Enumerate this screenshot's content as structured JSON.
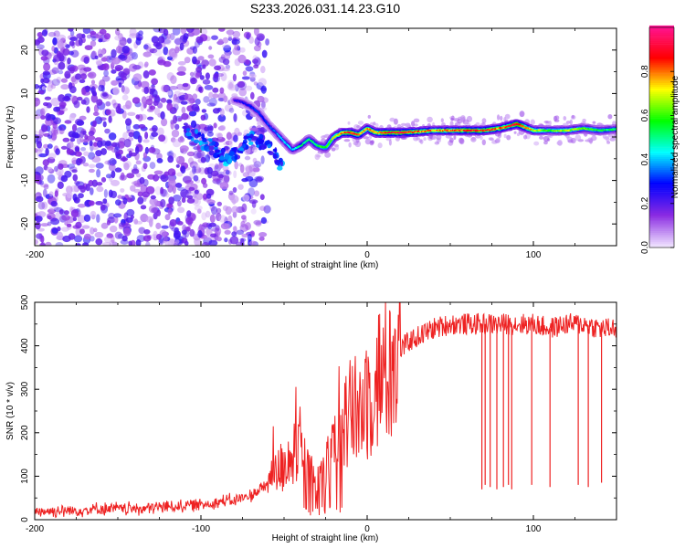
{
  "title": "S233.2026.031.14.23.G10",
  "chart_data": [
    {
      "type": "heatmap",
      "title": "S233.2026.031.14.23.G10",
      "xlabel": "Height of straight line (km)",
      "ylabel": "Frequency (Hz)",
      "xlim": [
        -200,
        150
      ],
      "ylim": [
        -25,
        25
      ],
      "xticks": [
        -200,
        -100,
        0,
        100
      ],
      "yticks": [
        -20,
        -10,
        0,
        10,
        20
      ],
      "colorbar": {
        "label": "Normalized spectral amplitude",
        "range": [
          0,
          1
        ],
        "ticks": [
          0.0,
          0.2,
          0.4,
          0.6,
          0.8
        ],
        "colors": [
          "#f0e4ff",
          "#8a2be2",
          "#0000ff",
          "#00ffff",
          "#00ff00",
          "#ffff00",
          "#ff0000",
          "#ff1493"
        ]
      },
      "dominant_line": {
        "x": [
          -80,
          -75,
          -70,
          -65,
          -60,
          -55,
          -50,
          -45,
          -40,
          -35,
          -30,
          -25,
          -20,
          -15,
          -10,
          -5,
          0,
          5,
          10,
          20,
          30,
          40,
          50,
          60,
          70,
          80,
          85,
          90,
          100,
          110,
          120,
          130,
          140,
          150
        ],
        "freq": [
          8.5,
          8,
          7,
          5.5,
          3,
          1,
          -1,
          -3,
          -2,
          -0.5,
          -2,
          -2.5,
          0,
          1,
          1,
          0.5,
          2,
          1,
          1,
          1,
          1.2,
          1.5,
          1.5,
          1.5,
          1.5,
          2,
          2.5,
          3,
          1.5,
          1.5,
          1.5,
          2,
          1.5,
          1.8
        ],
        "amplitude": [
          0.25,
          0.25,
          0.3,
          0.3,
          0.3,
          0.35,
          0.4,
          0.4,
          0.5,
          0.5,
          0.55,
          0.6,
          0.7,
          0.8,
          0.85,
          0.8,
          0.75,
          0.8,
          0.85,
          0.9,
          0.8,
          0.75,
          0.8,
          0.85,
          0.85,
          0.8,
          0.85,
          0.9,
          0.7,
          0.6,
          0.65,
          0.6,
          0.55,
          0.5
        ]
      },
      "secondary_branch": {
        "x": [
          -110,
          -100,
          -90,
          -85,
          -80,
          -70,
          -60,
          -50
        ],
        "freq": [
          2,
          -1,
          -3,
          -5,
          -4,
          0,
          -2,
          -7
        ],
        "amplitude": [
          0.3,
          0.35,
          0.3,
          0.35,
          0.3,
          0.35,
          0.3,
          0.35
        ]
      },
      "noise_region": {
        "x_range": [
          -200,
          -60
        ],
        "freq_range": [
          -25,
          25
        ],
        "amplitude_range": [
          0.02,
          0.2
        ]
      }
    },
    {
      "type": "line",
      "xlabel": "Height of straight line (km)",
      "ylabel": "SNR (10 * v/v)",
      "xlim": [
        -200,
        150
      ],
      "ylim": [
        0,
        500
      ],
      "xticks": [
        -200,
        -100,
        0,
        100
      ],
      "yticks": [
        0,
        100,
        200,
        300,
        400,
        500
      ],
      "color": "#ee2222",
      "series": [
        {
          "name": "SNR",
          "x": [
            -200,
            -180,
            -160,
            -140,
            -120,
            -100,
            -90,
            -80,
            -70,
            -60,
            -55,
            -50,
            -45,
            -40,
            -35,
            -30,
            -25,
            -20,
            -15,
            -10,
            -5,
            0,
            5,
            10,
            15,
            20,
            25,
            30,
            40,
            50,
            60,
            70,
            80,
            90,
            100,
            110,
            120,
            130,
            140,
            150
          ],
          "y": [
            20,
            20,
            25,
            25,
            30,
            35,
            40,
            45,
            55,
            80,
            100,
            130,
            150,
            140,
            120,
            100,
            110,
            160,
            220,
            240,
            250,
            280,
            320,
            340,
            360,
            390,
            410,
            420,
            440,
            450,
            450,
            450,
            450,
            450,
            450,
            440,
            450,
            450,
            440,
            440
          ]
        }
      ],
      "dropouts": [
        {
          "x": 69,
          "y": 70
        },
        {
          "x": 71,
          "y": 80
        },
        {
          "x": 74,
          "y": 75
        },
        {
          "x": 78,
          "y": 70
        },
        {
          "x": 82,
          "y": 75
        },
        {
          "x": 85,
          "y": 80
        },
        {
          "x": 87,
          "y": 70
        },
        {
          "x": 99,
          "y": 80
        },
        {
          "x": 110,
          "y": 75
        },
        {
          "x": 127,
          "y": 80
        },
        {
          "x": 133,
          "y": 75
        },
        {
          "x": 141,
          "y": 85
        }
      ]
    }
  ]
}
